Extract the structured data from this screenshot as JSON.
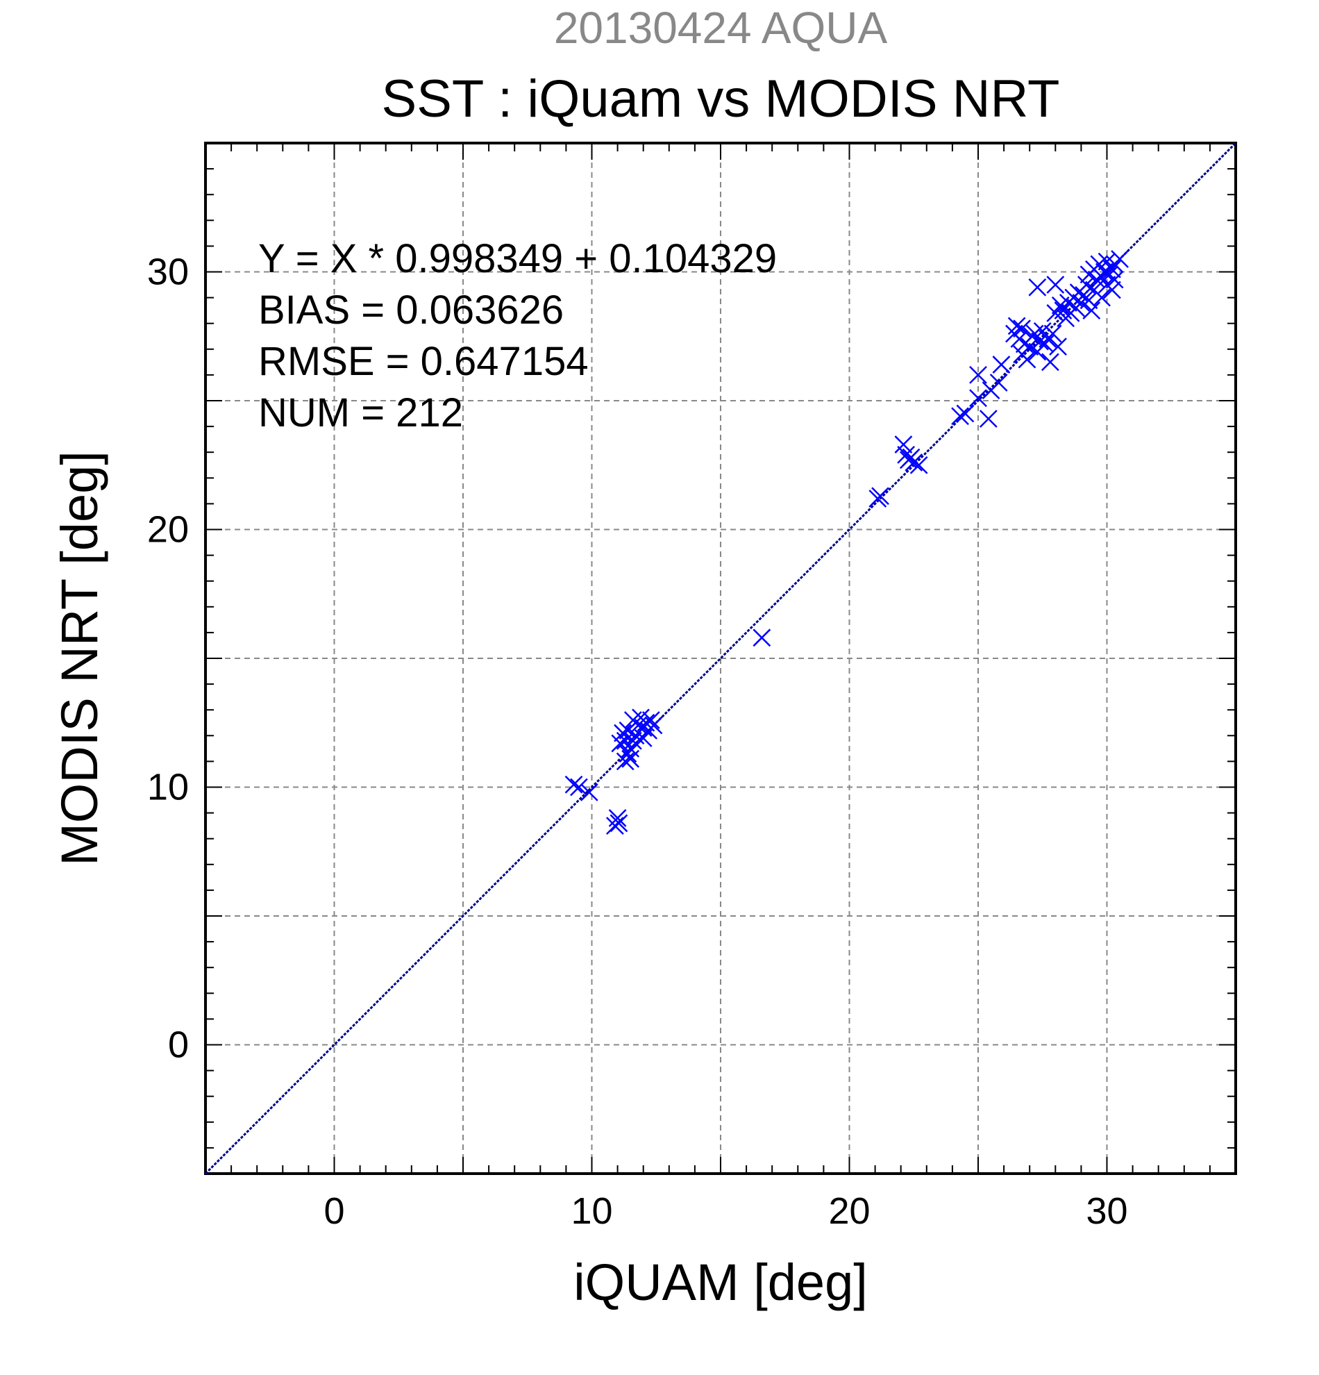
{
  "chart_data": {
    "type": "scatter",
    "subtitle": "20130424 AQUA",
    "title": "SST : iQuam vs MODIS NRT",
    "xlabel": "iQUAM [deg]",
    "ylabel": "MODIS NRT [deg]",
    "xlim": [
      -5,
      35
    ],
    "ylim": [
      -5,
      35
    ],
    "xticks": [
      0,
      10,
      20,
      30
    ],
    "yticks": [
      0,
      10,
      20,
      30
    ],
    "grid": true,
    "stats": [
      "Y = X * 0.998349 + 0.104329",
      "BIAS = 0.063626",
      "RMSE = 0.647154",
      "NUM = 212"
    ],
    "reference_line": {
      "slope": 1,
      "intercept": 0
    },
    "colors": {
      "points": "#0000ff",
      "reference_line": "#00008b",
      "subtitle": "#888888",
      "grid": "#888888"
    },
    "series": [
      {
        "marker": "x",
        "points": [
          [
            9.3,
            10.1
          ],
          [
            9.5,
            10.0
          ],
          [
            9.9,
            9.8
          ],
          [
            10.9,
            8.5
          ],
          [
            11.0,
            8.8
          ],
          [
            11.05,
            8.6
          ],
          [
            11.1,
            11.7
          ],
          [
            11.2,
            12.1
          ],
          [
            11.3,
            11.8
          ],
          [
            11.3,
            11.0
          ],
          [
            11.4,
            11.3
          ],
          [
            11.4,
            12.2
          ],
          [
            11.5,
            11.5
          ],
          [
            11.5,
            11.1
          ],
          [
            11.6,
            11.8
          ],
          [
            11.6,
            12.6
          ],
          [
            11.7,
            12.0
          ],
          [
            11.8,
            12.4
          ],
          [
            11.9,
            12.7
          ],
          [
            12.0,
            11.9
          ],
          [
            12.0,
            12.3
          ],
          [
            12.1,
            12.5
          ],
          [
            12.2,
            12.2
          ],
          [
            12.3,
            12.6
          ],
          [
            12.4,
            12.4
          ],
          [
            16.6,
            15.8
          ],
          [
            21.1,
            21.2
          ],
          [
            21.2,
            21.3
          ],
          [
            22.1,
            23.3
          ],
          [
            22.2,
            22.9
          ],
          [
            22.3,
            22.7
          ],
          [
            22.4,
            22.8
          ],
          [
            22.5,
            22.6
          ],
          [
            22.7,
            22.5
          ],
          [
            24.3,
            24.4
          ],
          [
            24.5,
            24.5
          ],
          [
            25.0,
            25.1
          ],
          [
            25.0,
            26.0
          ],
          [
            25.4,
            24.3
          ],
          [
            25.5,
            25.4
          ],
          [
            25.8,
            25.7
          ],
          [
            25.9,
            26.4
          ],
          [
            26.4,
            27.6
          ],
          [
            26.5,
            27.9
          ],
          [
            26.6,
            27.4
          ],
          [
            26.7,
            27.8
          ],
          [
            26.7,
            26.8
          ],
          [
            26.8,
            27.2
          ],
          [
            26.9,
            26.6
          ],
          [
            27.0,
            27.1
          ],
          [
            27.1,
            27.5
          ],
          [
            27.2,
            27.6
          ],
          [
            27.3,
            26.9
          ],
          [
            27.3,
            29.4
          ],
          [
            27.4,
            27.3
          ],
          [
            27.5,
            27.7
          ],
          [
            27.6,
            27.2
          ],
          [
            27.7,
            27.4
          ],
          [
            27.8,
            26.5
          ],
          [
            27.9,
            27.6
          ],
          [
            28.0,
            29.5
          ],
          [
            28.0,
            28.4
          ],
          [
            28.1,
            27.1
          ],
          [
            28.2,
            28.7
          ],
          [
            28.3,
            28.5
          ],
          [
            28.4,
            28.2
          ],
          [
            28.5,
            28.8
          ],
          [
            28.6,
            28.4
          ],
          [
            28.7,
            29.0
          ],
          [
            28.8,
            28.6
          ],
          [
            28.9,
            29.2
          ],
          [
            29.0,
            28.8
          ],
          [
            29.1,
            29.1
          ],
          [
            29.2,
            29.5
          ],
          [
            29.3,
            28.9
          ],
          [
            29.3,
            29.9
          ],
          [
            29.4,
            28.5
          ],
          [
            29.5,
            30.1
          ],
          [
            29.5,
            29.3
          ],
          [
            29.6,
            29.7
          ],
          [
            29.7,
            30.3
          ],
          [
            29.8,
            29.0
          ],
          [
            29.8,
            29.8
          ],
          [
            29.9,
            30.0
          ],
          [
            30.0,
            29.5
          ],
          [
            30.0,
            30.4
          ],
          [
            30.1,
            29.9
          ],
          [
            30.2,
            30.1
          ],
          [
            30.2,
            29.3
          ],
          [
            30.3,
            30.3
          ],
          [
            30.3,
            29.7
          ],
          [
            30.5,
            30.5
          ]
        ]
      }
    ]
  }
}
